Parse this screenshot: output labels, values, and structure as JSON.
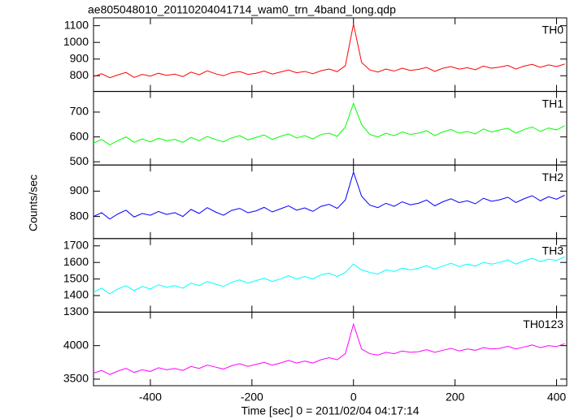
{
  "chart_data": {
    "type": "line",
    "title": "ae805048010_20110204041714_wam0_trn_4band_long.qdp",
    "xlabel": "Time [sec] 0 = 2011/02/04 04:17:14",
    "ylabel": "Counts/sec",
    "xlim": [
      -512,
      420
    ],
    "xticks": [
      -400,
      -200,
      0,
      200,
      400
    ],
    "x": [
      -512,
      -496,
      -480,
      -464,
      -448,
      -432,
      -416,
      -400,
      -384,
      -368,
      -352,
      -336,
      -320,
      -304,
      -288,
      -272,
      -256,
      -240,
      -224,
      -208,
      -192,
      -176,
      -160,
      -144,
      -128,
      -112,
      -96,
      -80,
      -64,
      -48,
      -32,
      -16,
      0,
      16,
      32,
      48,
      64,
      80,
      96,
      112,
      128,
      144,
      160,
      176,
      192,
      208,
      224,
      240,
      256,
      272,
      288,
      304,
      320,
      336,
      352,
      368,
      384,
      400,
      416
    ],
    "series": [
      {
        "name": "TH0",
        "color": "#ff0000",
        "ylim": [
          706,
          1147
        ],
        "yticks": [
          800,
          900,
          1000,
          1100
        ],
        "values": [
          795,
          812,
          788,
          805,
          820,
          790,
          808,
          798,
          815,
          802,
          810,
          795,
          822,
          806,
          830,
          812,
          800,
          818,
          825,
          808,
          815,
          828,
          810,
          822,
          835,
          818,
          826,
          812,
          830,
          840,
          825,
          860,
          1110,
          880,
          835,
          822,
          840,
          828,
          845,
          832,
          838,
          850,
          826,
          845,
          855,
          840,
          848,
          836,
          858,
          845,
          852,
          862,
          840,
          858,
          868,
          850,
          865,
          855,
          870
        ]
      },
      {
        "name": "TH1",
        "color": "#00ff00",
        "ylim": [
          487,
          783
        ],
        "yticks": [
          500,
          600,
          700
        ],
        "values": [
          575,
          590,
          568,
          585,
          600,
          578,
          592,
          580,
          595,
          585,
          590,
          578,
          598,
          585,
          602,
          590,
          580,
          596,
          605,
          588,
          598,
          608,
          590,
          602,
          612,
          596,
          605,
          592,
          610,
          615,
          602,
          640,
          735,
          650,
          610,
          600,
          615,
          605,
          620,
          610,
          615,
          625,
          605,
          620,
          630,
          615,
          622,
          612,
          632,
          620,
          628,
          635,
          615,
          630,
          640,
          622,
          636,
          628,
          645
        ]
      },
      {
        "name": "TH2",
        "color": "#0000ff",
        "ylim": [
          713,
          1003
        ],
        "yticks": [
          800,
          900
        ],
        "values": [
          800,
          815,
          790,
          810,
          825,
          798,
          812,
          805,
          820,
          808,
          815,
          800,
          828,
          812,
          835,
          818,
          805,
          824,
          832,
          815,
          822,
          836,
          818,
          830,
          842,
          825,
          834,
          820,
          840,
          848,
          832,
          865,
          975,
          880,
          845,
          835,
          852,
          840,
          858,
          846,
          852,
          865,
          842,
          858,
          870,
          855,
          862,
          850,
          872,
          860,
          866,
          876,
          855,
          870,
          882,
          862,
          878,
          868,
          884
        ]
      },
      {
        "name": "TH3",
        "color": "#00ffff",
        "ylim": [
          1300,
          1744
        ],
        "yticks": [
          1300,
          1400,
          1500,
          1600,
          1700
        ],
        "values": [
          1420,
          1445,
          1410,
          1440,
          1460,
          1430,
          1455,
          1440,
          1465,
          1450,
          1460,
          1445,
          1475,
          1460,
          1485,
          1470,
          1455,
          1480,
          1495,
          1475,
          1490,
          1505,
          1485,
          1500,
          1520,
          1500,
          1515,
          1500,
          1525,
          1535,
          1515,
          1540,
          1590,
          1555,
          1540,
          1530,
          1555,
          1545,
          1565,
          1555,
          1565,
          1580,
          1560,
          1578,
          1595,
          1575,
          1590,
          1578,
          1600,
          1590,
          1600,
          1615,
          1590,
          1610,
          1625,
          1605,
          1620,
          1612,
          1635
        ]
      },
      {
        "name": "TH0123",
        "color": "#ff00ff",
        "ylim": [
          3402,
          4500
        ],
        "yticks": [
          3500,
          4000
        ],
        "values": [
          3590,
          3630,
          3570,
          3620,
          3660,
          3600,
          3640,
          3615,
          3670,
          3640,
          3660,
          3630,
          3690,
          3660,
          3710,
          3680,
          3650,
          3700,
          3730,
          3690,
          3720,
          3750,
          3710,
          3740,
          3780,
          3740,
          3770,
          3740,
          3790,
          3820,
          3790,
          3880,
          4320,
          3950,
          3880,
          3860,
          3900,
          3880,
          3920,
          3900,
          3910,
          3940,
          3900,
          3930,
          3960,
          3920,
          3950,
          3930,
          3970,
          3950,
          3960,
          3990,
          3950,
          3980,
          4010,
          3970,
          4000,
          3985,
          4030
        ]
      }
    ]
  }
}
